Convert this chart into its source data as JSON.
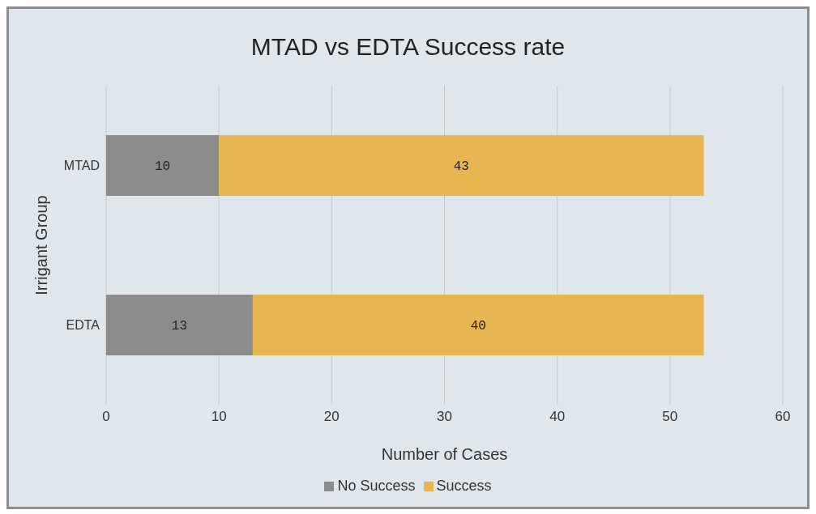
{
  "chart_data": {
    "type": "bar",
    "orientation": "horizontal",
    "stacked": true,
    "title": "MTAD vs  EDTA Success rate",
    "xlabel": "Number of Cases",
    "ylabel": "Irrigant Group",
    "categories": [
      "MTAD",
      "EDTA"
    ],
    "series": [
      {
        "name": "No Success",
        "color": "#8c8c8c",
        "values": [
          10,
          13
        ]
      },
      {
        "name": "Success",
        "color": "#e8b651",
        "values": [
          43,
          40
        ]
      }
    ],
    "xlim": [
      0,
      60
    ],
    "xticks": [
      0,
      10,
      20,
      30,
      40,
      50,
      60
    ],
    "grid": "x",
    "legend": "bottom",
    "data_labels": true
  }
}
